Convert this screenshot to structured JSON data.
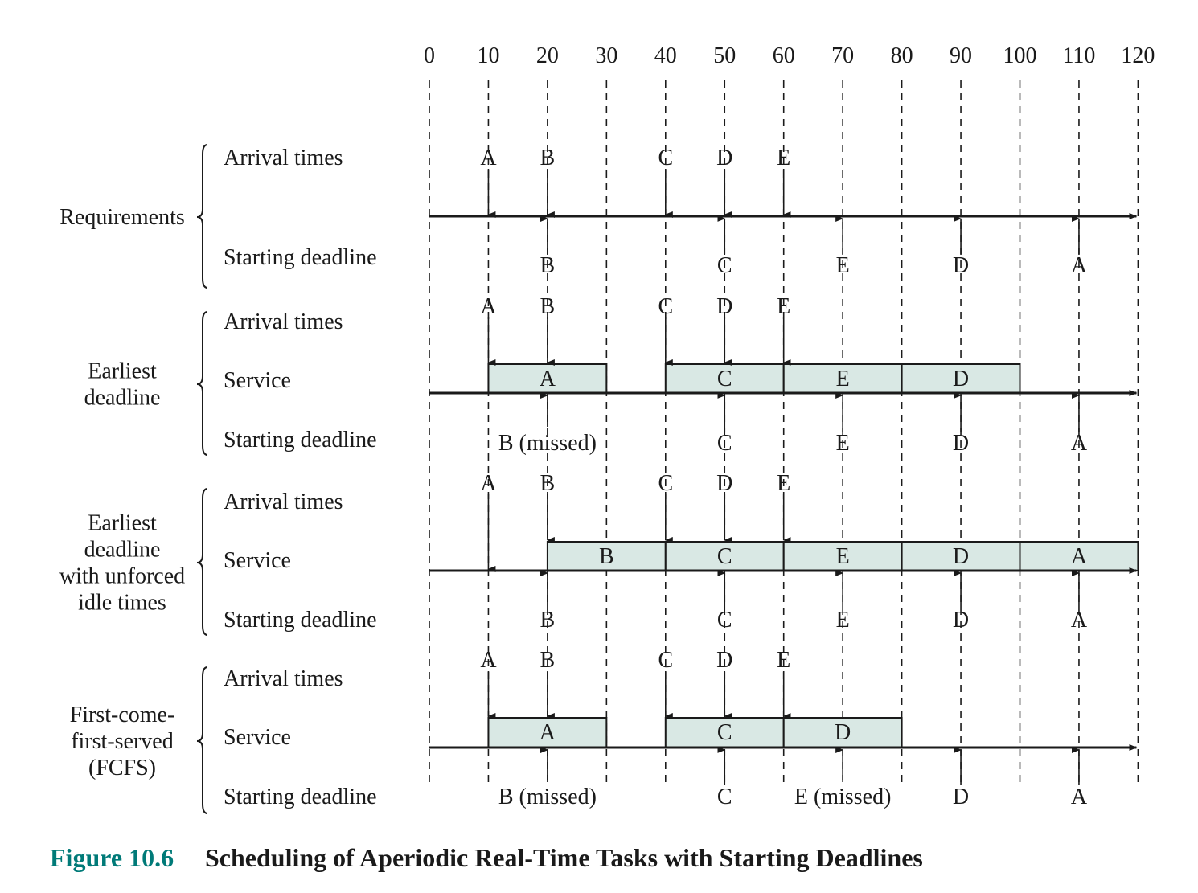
{
  "time_ticks": [
    "0",
    "10",
    "20",
    "30",
    "40",
    "50",
    "60",
    "70",
    "80",
    "90",
    "100",
    "110",
    "120"
  ],
  "time_values": [
    0,
    10,
    20,
    30,
    40,
    50,
    60,
    70,
    80,
    90,
    100,
    110,
    120
  ],
  "row_labels": {
    "arrival": "Arrival times",
    "service": "Service",
    "deadline": "Starting deadline"
  },
  "panels": [
    {
      "title_lines": [
        "Requirements"
      ],
      "has_service": false,
      "arrivals": [
        {
          "label": "A",
          "t": 10
        },
        {
          "label": "B",
          "t": 20
        },
        {
          "label": "C",
          "t": 40
        },
        {
          "label": "D",
          "t": 50
        },
        {
          "label": "E",
          "t": 60
        }
      ],
      "service": [],
      "deadlines": [
        {
          "label": "B",
          "t": 20
        },
        {
          "label": "C",
          "t": 50
        },
        {
          "label": "E",
          "t": 70
        },
        {
          "label": "D",
          "t": 90
        },
        {
          "label": "A",
          "t": 110
        }
      ]
    },
    {
      "title_lines": [
        "Earliest",
        "deadline"
      ],
      "has_service": true,
      "arrivals": [
        {
          "label": "A",
          "t": 10
        },
        {
          "label": "B",
          "t": 20
        },
        {
          "label": "C",
          "t": 40
        },
        {
          "label": "D",
          "t": 50
        },
        {
          "label": "E",
          "t": 60
        }
      ],
      "service": [
        {
          "label": "A",
          "start": 10,
          "end": 30
        },
        {
          "label": "C",
          "start": 40,
          "end": 60
        },
        {
          "label": "E",
          "start": 60,
          "end": 80
        },
        {
          "label": "D",
          "start": 80,
          "end": 100
        }
      ],
      "deadlines": [
        {
          "label": "B (missed)",
          "t": 20
        },
        {
          "label": "C",
          "t": 50
        },
        {
          "label": "E",
          "t": 70
        },
        {
          "label": "D",
          "t": 90
        },
        {
          "label": "A",
          "t": 110
        }
      ]
    },
    {
      "title_lines": [
        "Earliest",
        "deadline",
        "with unforced",
        "idle times"
      ],
      "has_service": true,
      "arrivals": [
        {
          "label": "A",
          "t": 10
        },
        {
          "label": "B",
          "t": 20
        },
        {
          "label": "C",
          "t": 40
        },
        {
          "label": "D",
          "t": 50
        },
        {
          "label": "E",
          "t": 60
        }
      ],
      "service": [
        {
          "label": "B",
          "start": 20,
          "end": 40
        },
        {
          "label": "C",
          "start": 40,
          "end": 60
        },
        {
          "label": "E",
          "start": 60,
          "end": 80
        },
        {
          "label": "D",
          "start": 80,
          "end": 100
        },
        {
          "label": "A",
          "start": 100,
          "end": 120
        }
      ],
      "deadlines": [
        {
          "label": "B",
          "t": 20
        },
        {
          "label": "C",
          "t": 50
        },
        {
          "label": "E",
          "t": 70
        },
        {
          "label": "D",
          "t": 90
        },
        {
          "label": "A",
          "t": 110
        }
      ]
    },
    {
      "title_lines": [
        "First-come-",
        "first-served",
        "(FCFS)"
      ],
      "has_service": true,
      "arrivals": [
        {
          "label": "A",
          "t": 10
        },
        {
          "label": "B",
          "t": 20
        },
        {
          "label": "C",
          "t": 40
        },
        {
          "label": "D",
          "t": 50
        },
        {
          "label": "E",
          "t": 60
        }
      ],
      "service": [
        {
          "label": "A",
          "start": 10,
          "end": 30
        },
        {
          "label": "C",
          "start": 40,
          "end": 60
        },
        {
          "label": "D",
          "start": 60,
          "end": 80
        }
      ],
      "deadlines": [
        {
          "label": "B (missed)",
          "t": 20
        },
        {
          "label": "C",
          "t": 50
        },
        {
          "label": "E (missed)",
          "t": 70
        },
        {
          "label": "D",
          "t": 90
        },
        {
          "label": "A",
          "t": 110
        }
      ]
    }
  ],
  "caption": {
    "number": "Figure 10.6",
    "title": "Scheduling of Aperiodic Real-Time Tasks with Starting Deadlines"
  },
  "colors": {
    "service_fill": "#d9e8e4",
    "line": "#1a1a1a",
    "caption_accent": "#007a78"
  }
}
